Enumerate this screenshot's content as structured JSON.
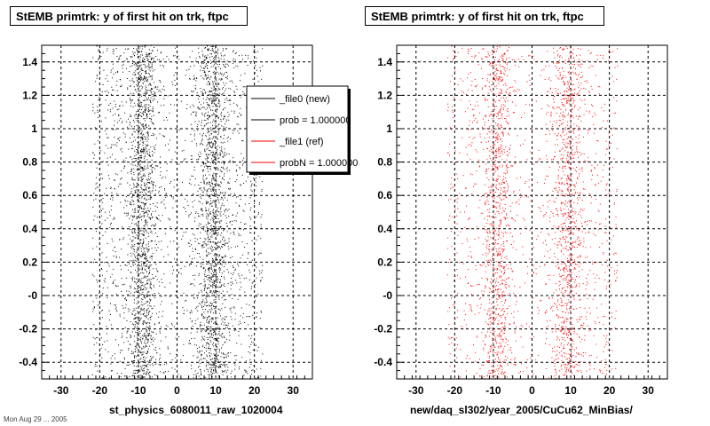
{
  "chart_data": [
    {
      "type": "scatter",
      "title": "StEMB primtrk: y of first hit on trk, ftpc",
      "xlabel": "st_physics_6080011_raw_1020004",
      "ylabel": "",
      "xlim": [
        -35,
        35
      ],
      "ylim": [
        -0.5,
        1.5
      ],
      "xticks": [
        "-30",
        "-20",
        "-10",
        "0",
        "10",
        "20",
        "30"
      ],
      "yticks": [
        "-0.4",
        "-0.2",
        "-0",
        "0.2",
        "0.4",
        "0.6",
        "0.8",
        "1",
        "1.2",
        "1.4"
      ],
      "grid": true,
      "series": [
        {
          "name": "_file0 (new)",
          "color": "#000000",
          "x_range": [
            -22,
            22
          ],
          "dense_bands": [
            -9,
            9
          ]
        }
      ],
      "legend": {
        "placement": "top-right",
        "entries": [
          {
            "label": "_file0 (new)",
            "color": "#000000"
          },
          {
            "label": "prob = 1.000000",
            "color": "#000000"
          },
          {
            "label": "_file1 (ref)",
            "color": "#ff0000"
          },
          {
            "label": "probN = 1.000000",
            "color": "#ff0000"
          }
        ]
      }
    },
    {
      "type": "scatter",
      "title": "StEMB primtrk: y of first hit on trk, ftpc",
      "xlabel": "new/daq_sl302/year_2005/CuCu62_MinBias/",
      "ylabel": "",
      "xlim": [
        -35,
        35
      ],
      "ylim": [
        -0.5,
        1.5
      ],
      "xticks": [
        "-30",
        "-20",
        "-10",
        "0",
        "10",
        "20",
        "30"
      ],
      "yticks": [
        "-0.4",
        "-0.2",
        "-0",
        "0.2",
        "0.4",
        "0.6",
        "0.8",
        "1",
        "1.2",
        "1.4"
      ],
      "grid": true,
      "series": [
        {
          "name": "_file1 (ref)",
          "color": "#ff0000",
          "x_range": [
            -22,
            22
          ],
          "dense_bands": [
            -9,
            9
          ]
        }
      ]
    }
  ],
  "footer": "Mon Aug 29 ... 2005"
}
